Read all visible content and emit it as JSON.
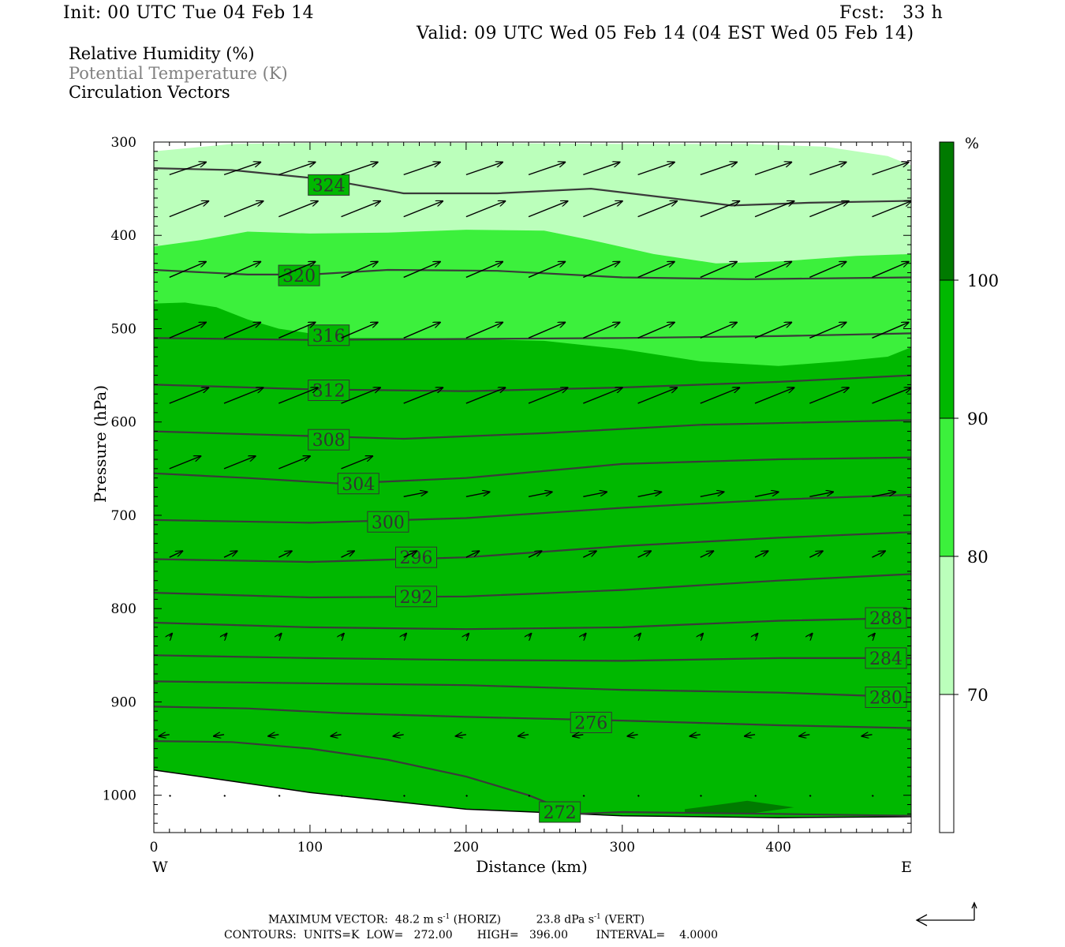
{
  "header": {
    "init": "Init: 00 UTC Tue 04 Feb 14",
    "forecast": "Fcst:   33 h",
    "valid": "Valid: 09 UTC Wed 05 Feb 14 (04 EST Wed 05 Feb 14)"
  },
  "legend": {
    "rh": "Relative Humidity (%)",
    "theta": "Potential Temperature (K)",
    "vectors": "Circulation Vectors"
  },
  "footer": {
    "max_vector_label": "MAXIMUM VECTOR:",
    "horiz": "48.2 m s",
    "horiz_unit": "(HORIZ)",
    "vert": "23.8 dPa s",
    "vert_unit": "(VERT)",
    "contours": "CONTOURS:  UNITS=K  LOW=   272.00       HIGH=   396.00        INTERVAL=    4.0000"
  },
  "colors": {
    "rh_70_80": "#bbffbb",
    "rh_80_90": "#3cf03c",
    "rh_90_100": "#00b800",
    "rh_100": "#007a00",
    "theta_line": "#3a3a3a",
    "vector": "#000000"
  },
  "chart_data": {
    "type": "contour-cross-section",
    "xlabel": "Distance (km)",
    "ylabel": "Pressure (hPa)",
    "xlim": [
      0,
      485
    ],
    "ylim": [
      1040,
      300
    ],
    "y_log": false,
    "x_ticks": [
      0,
      100,
      200,
      300,
      400
    ],
    "y_ticks": [
      300,
      400,
      500,
      600,
      700,
      800,
      900,
      1000
    ],
    "x_end_labels": [
      "W",
      "E"
    ],
    "colorbar": {
      "unit": "%",
      "levels": [
        70,
        80,
        90,
        100
      ],
      "colors": [
        "#ffffff",
        "#bbffbb",
        "#3cf03c",
        "#00b800",
        "#007a00"
      ]
    },
    "rh_regions": [
      {
        "level": "70-80",
        "top_boundary": [
          [
            0,
            310
          ],
          [
            50,
            302
          ],
          [
            100,
            301
          ],
          [
            200,
            301
          ],
          [
            300,
            302
          ],
          [
            380,
            302
          ],
          [
            430,
            305
          ],
          [
            470,
            315
          ],
          [
            485,
            325
          ]
        ]
      },
      {
        "level": "80-90",
        "top_boundary": [
          [
            0,
            412
          ],
          [
            30,
            405
          ],
          [
            60,
            396
          ],
          [
            100,
            398
          ],
          [
            150,
            397
          ],
          [
            200,
            394
          ],
          [
            250,
            395
          ],
          [
            280,
            405
          ],
          [
            320,
            420
          ],
          [
            360,
            430
          ],
          [
            400,
            428
          ],
          [
            450,
            422
          ],
          [
            485,
            420
          ]
        ]
      },
      {
        "level": "90-100",
        "top_boundary": [
          [
            0,
            473
          ],
          [
            20,
            472
          ],
          [
            40,
            477
          ],
          [
            60,
            490
          ],
          [
            80,
            500
          ],
          [
            120,
            510
          ],
          [
            160,
            510
          ],
          [
            200,
            511
          ],
          [
            250,
            513
          ],
          [
            300,
            522
          ],
          [
            350,
            535
          ],
          [
            400,
            540
          ],
          [
            440,
            535
          ],
          [
            470,
            530
          ],
          [
            485,
            520
          ]
        ]
      },
      {
        "level": "100",
        "patch": [
          [
            340,
            1015
          ],
          [
            380,
            1006
          ],
          [
            410,
            1013
          ],
          [
            380,
            1020
          ],
          [
            340,
            1018
          ]
        ]
      }
    ],
    "theta_contours": [
      {
        "value": 324,
        "points": [
          [
            0,
            328
          ],
          [
            50,
            330
          ],
          [
            110,
            340
          ],
          [
            160,
            355
          ],
          [
            220,
            355
          ],
          [
            280,
            350
          ],
          [
            330,
            360
          ],
          [
            370,
            368
          ],
          [
            420,
            365
          ],
          [
            485,
            363
          ]
        ],
        "label_at": [
          112,
          346
        ]
      },
      {
        "value": 320,
        "points": [
          [
            0,
            437
          ],
          [
            60,
            442
          ],
          [
            100,
            442
          ],
          [
            150,
            437
          ],
          [
            220,
            438
          ],
          [
            300,
            445
          ],
          [
            380,
            447
          ],
          [
            485,
            445
          ]
        ],
        "label_at": [
          93,
          443
        ]
      },
      {
        "value": 316,
        "points": [
          [
            0,
            510
          ],
          [
            100,
            512
          ],
          [
            200,
            511
          ],
          [
            300,
            510
          ],
          [
            400,
            508
          ],
          [
            485,
            505
          ]
        ],
        "label_at": [
          112,
          507
        ]
      },
      {
        "value": 312,
        "points": [
          [
            0,
            560
          ],
          [
            100,
            565
          ],
          [
            200,
            567
          ],
          [
            300,
            563
          ],
          [
            400,
            557
          ],
          [
            485,
            550
          ]
        ],
        "label_at": [
          112,
          566
        ]
      },
      {
        "value": 308,
        "points": [
          [
            0,
            610
          ],
          [
            100,
            615
          ],
          [
            160,
            618
          ],
          [
            250,
            612
          ],
          [
            350,
            603
          ],
          [
            485,
            598
          ]
        ],
        "label_at": [
          112,
          619
        ]
      },
      {
        "value": 304,
        "points": [
          [
            0,
            655
          ],
          [
            60,
            660
          ],
          [
            120,
            666
          ],
          [
            200,
            660
          ],
          [
            300,
            645
          ],
          [
            400,
            640
          ],
          [
            485,
            638
          ]
        ],
        "label_at": [
          131,
          666
        ]
      },
      {
        "value": 300,
        "points": [
          [
            0,
            705
          ],
          [
            100,
            708
          ],
          [
            200,
            703
          ],
          [
            300,
            692
          ],
          [
            400,
            683
          ],
          [
            485,
            678
          ]
        ],
        "label_at": [
          150,
          707
        ]
      },
      {
        "value": 296,
        "points": [
          [
            0,
            747
          ],
          [
            100,
            750
          ],
          [
            200,
            745
          ],
          [
            300,
            733
          ],
          [
            400,
            724
          ],
          [
            485,
            718
          ]
        ],
        "label_at": [
          168,
          745
        ]
      },
      {
        "value": 292,
        "points": [
          [
            0,
            783
          ],
          [
            100,
            788
          ],
          [
            200,
            787
          ],
          [
            300,
            780
          ],
          [
            400,
            770
          ],
          [
            485,
            763
          ]
        ],
        "label_at": [
          168,
          787
        ]
      },
      {
        "value": 288,
        "points": [
          [
            0,
            815
          ],
          [
            100,
            820
          ],
          [
            200,
            822
          ],
          [
            300,
            820
          ],
          [
            400,
            813
          ],
          [
            485,
            810
          ]
        ]
      },
      {
        "value": 284,
        "points": [
          [
            0,
            850
          ],
          [
            100,
            853
          ],
          [
            200,
            855
          ],
          [
            300,
            856
          ],
          [
            400,
            853
          ],
          [
            485,
            853
          ]
        ]
      },
      {
        "value": 280,
        "points": [
          [
            0,
            878
          ],
          [
            100,
            880
          ],
          [
            200,
            882
          ],
          [
            300,
            887
          ],
          [
            400,
            890
          ],
          [
            485,
            895
          ]
        ]
      },
      {
        "value": 276,
        "points": [
          [
            0,
            905
          ],
          [
            60,
            907
          ],
          [
            120,
            912
          ],
          [
            200,
            916
          ],
          [
            300,
            920
          ],
          [
            400,
            925
          ],
          [
            485,
            928
          ]
        ],
        "label_at": [
          280,
          922
        ]
      },
      {
        "value": 272,
        "points": [
          [
            0,
            942
          ],
          [
            50,
            943
          ],
          [
            100,
            950
          ],
          [
            150,
            962
          ],
          [
            200,
            980
          ],
          [
            240,
            1000
          ],
          [
            270,
            1020
          ],
          [
            300,
            1018
          ],
          [
            400,
            1020
          ],
          [
            485,
            1022
          ]
        ],
        "label_at": [
          260,
          1018
        ]
      }
    ],
    "surface": [
      [
        0,
        973
      ],
      [
        30,
        980
      ],
      [
        100,
        997
      ],
      [
        200,
        1015
      ],
      [
        300,
        1022
      ],
      [
        400,
        1024
      ],
      [
        485,
        1023
      ]
    ],
    "vector_rows": [
      {
        "p": 335,
        "xs": [
          10,
          45,
          80,
          120,
          160,
          200,
          240,
          275,
          310,
          350,
          385,
          420,
          460
        ],
        "u": 14,
        "v": -0.8
      },
      {
        "p": 380,
        "xs": [
          10,
          45,
          80,
          120,
          160,
          200,
          240,
          275,
          310,
          350,
          385,
          420,
          460
        ],
        "u": 15,
        "v": -1.0
      },
      {
        "p": 445,
        "xs": [
          10,
          45,
          80,
          120,
          160,
          200,
          240,
          275,
          310,
          350,
          385,
          420,
          460
        ],
        "u": 14,
        "v": -1.0
      },
      {
        "p": 510,
        "xs": [
          10,
          45,
          80,
          120,
          160,
          200,
          240,
          275,
          310,
          350,
          385,
          420,
          460
        ],
        "u": 14,
        "v": -1.0
      },
      {
        "p": 580,
        "xs": [
          10,
          45,
          80,
          120,
          160,
          200,
          240,
          275,
          310,
          350,
          385,
          420,
          460
        ],
        "u": 15,
        "v": -1.0
      },
      {
        "p": 650,
        "xs": [
          10,
          45,
          80,
          120
        ],
        "u": 12,
        "v": -0.8
      },
      {
        "p": 680,
        "xs": [
          160,
          200,
          240,
          275,
          310,
          350,
          385,
          420,
          460
        ],
        "u": 9,
        "v": -0.3
      },
      {
        "p": 745,
        "xs": [
          10,
          45,
          80,
          120,
          160,
          200,
          240,
          275,
          310,
          350,
          385,
          420,
          460
        ],
        "u": 5,
        "v": -0.4
      },
      {
        "p": 830,
        "xs": [
          10,
          45,
          80,
          120,
          160,
          200,
          240,
          275,
          310,
          350,
          385,
          420,
          460
        ],
        "u": 1,
        "v": -0.2
      },
      {
        "p": 935,
        "xs": [
          10,
          45,
          80,
          120,
          160,
          200,
          240,
          275,
          310,
          350,
          385,
          420,
          460
        ],
        "u": -4,
        "v": 0.1
      },
      {
        "p": 1000,
        "xs": [
          10,
          45,
          80,
          120,
          160,
          200,
          240,
          275,
          310,
          350,
          385,
          420,
          460
        ],
        "u": -1,
        "v": 0.1
      }
    ]
  }
}
